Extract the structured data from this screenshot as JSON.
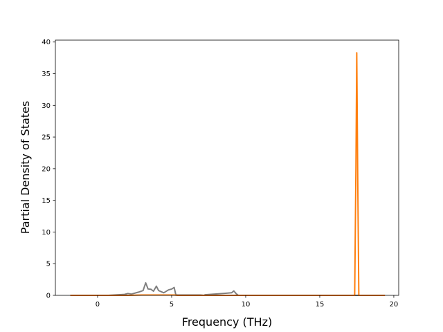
{
  "chart_data": {
    "type": "line",
    "title": "",
    "xlabel": "Frequency (THz)",
    "ylabel": "Partial Density of States",
    "xlim": [
      -2.85,
      20.33
    ],
    "ylim": [
      0,
      40.3
    ],
    "xticks": [
      0,
      5,
      10,
      15,
      20
    ],
    "yticks": [
      0,
      5,
      10,
      15,
      20,
      25,
      30,
      35,
      40
    ],
    "grid": false,
    "series": [
      {
        "color": "#7f7f7f",
        "x": [
          -1.84,
          0.73,
          1.82,
          2.05,
          2.28,
          2.76,
          3.07,
          3.25,
          3.41,
          3.61,
          3.77,
          3.97,
          4.12,
          4.47,
          4.78,
          5.01,
          5.17,
          5.28,
          5.4,
          6.95,
          7.2,
          7.26,
          8.5,
          9.05,
          9.2,
          9.36,
          9.5,
          19.4
        ],
        "y": [
          0,
          0,
          0.15,
          0.3,
          0.2,
          0.5,
          0.75,
          1.97,
          1.0,
          0.95,
          0.65,
          1.45,
          0.75,
          0.4,
          0.85,
          1.0,
          1.24,
          0.1,
          0.05,
          0.05,
          0,
          0.1,
          0.3,
          0.4,
          0.7,
          0.25,
          0,
          0
        ]
      },
      {
        "color": "#ff7f0e",
        "x": [
          -1.84,
          2.0,
          3.0,
          5.2,
          5.4,
          17.36,
          17.44,
          17.5,
          17.56,
          17.64,
          19.4
        ],
        "y": [
          0,
          0,
          0.05,
          0.05,
          0,
          0,
          20,
          38.3,
          20,
          0,
          0
        ]
      }
    ]
  }
}
